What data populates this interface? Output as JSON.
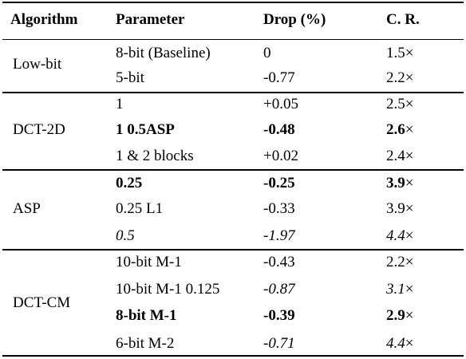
{
  "table": {
    "headers": {
      "algorithm": "Algorithm",
      "parameter": "Parameter",
      "drop": "Drop (%)",
      "cr": "C. R."
    },
    "groups": [
      {
        "name": "Low-bit",
        "rows": [
          {
            "parameter": "8-bit (Baseline)",
            "drop": "0",
            "cr": "1.5",
            "style": "normal"
          },
          {
            "parameter": "5-bit",
            "drop": "-0.77",
            "cr": "2.2",
            "style": "normal"
          }
        ]
      },
      {
        "name": "DCT-2D",
        "rows": [
          {
            "parameter": "1",
            "drop": "+0.05",
            "cr": "2.5",
            "style": "normal"
          },
          {
            "parameter": "1 0.5ASP",
            "drop": "-0.48",
            "cr": "2.6",
            "style": "bold"
          },
          {
            "parameter": "1 & 2 blocks",
            "drop": "+0.02",
            "cr": "2.4",
            "style": "normal"
          }
        ]
      },
      {
        "name": "ASP",
        "rows": [
          {
            "parameter": "0.25",
            "drop": "-0.25",
            "cr": "3.9",
            "style": "bold"
          },
          {
            "parameter": "0.25 L1",
            "drop": "-0.33",
            "cr": "3.9",
            "style": "normal"
          },
          {
            "parameter": "0.5",
            "drop": "-1.97",
            "cr": "4.4",
            "style": "italic"
          }
        ]
      },
      {
        "name": "DCT-CM",
        "rows": [
          {
            "parameter": "10-bit M-1",
            "drop": "-0.43",
            "cr": "2.2",
            "style": "normal"
          },
          {
            "parameter": "10-bit M-1 0.125",
            "drop": "-0.87",
            "cr": "3.1",
            "style": "italic-values"
          },
          {
            "parameter": "8-bit M-1",
            "drop": "-0.39",
            "cr": "2.9",
            "style": "bold"
          },
          {
            "parameter": "6-bit M-2",
            "drop": "-0.71",
            "cr": "4.4",
            "style": "italic-values"
          }
        ]
      }
    ],
    "cr_suffix": "×"
  }
}
